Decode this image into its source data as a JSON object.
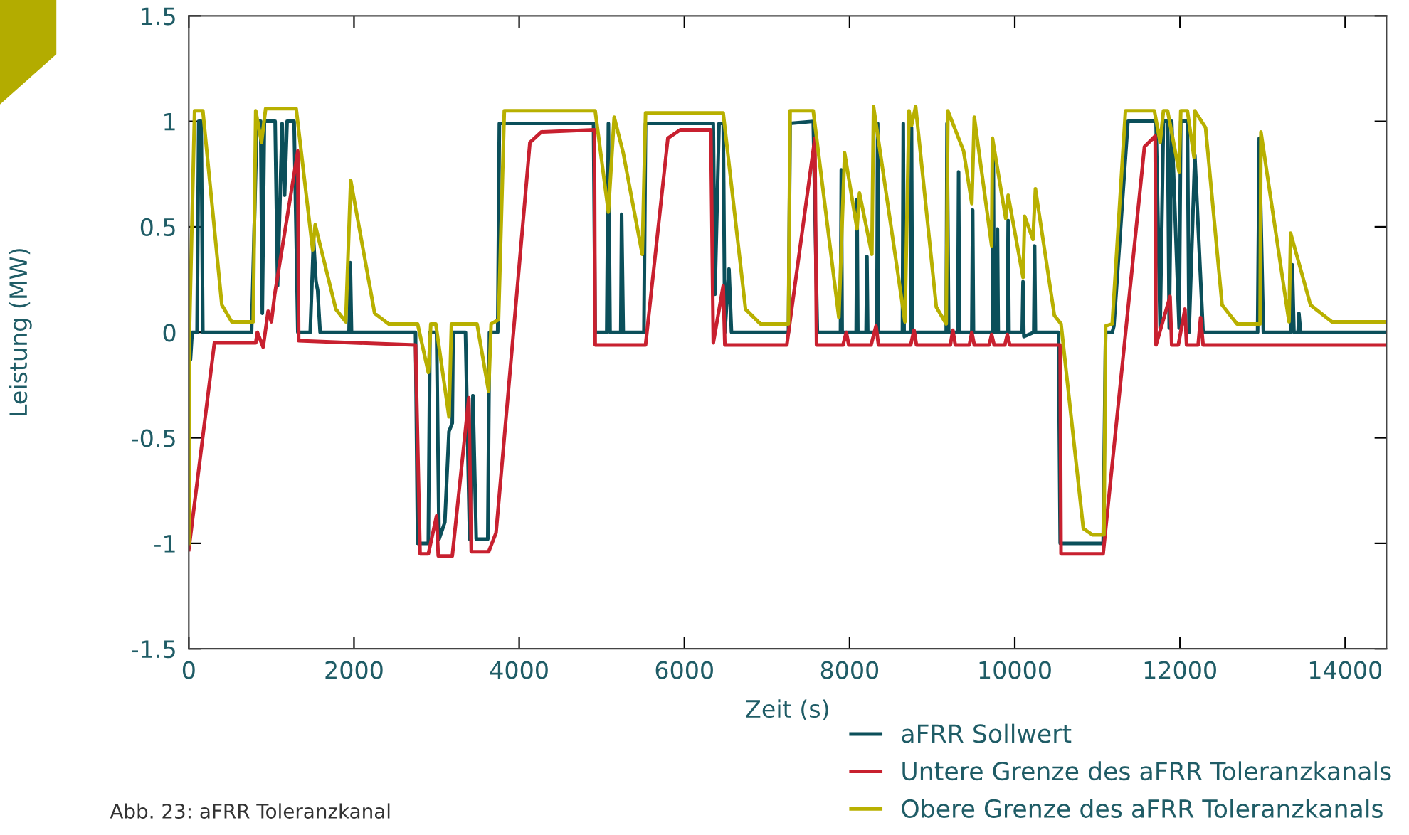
{
  "chart_data": {
    "type": "line",
    "xlabel": "Zeit (s)",
    "ylabel": "Leistung (MW)",
    "xlim": [
      0,
      14500
    ],
    "xticks": [
      0,
      2000,
      4000,
      6000,
      8000,
      10000,
      12000,
      14000
    ],
    "ylim": [
      -1.5,
      1.5
    ],
    "yticks": [
      {
        "value": -1.5,
        "label": "-1.5"
      },
      {
        "value": -1,
        "label": "-1"
      },
      {
        "value": -0.5,
        "label": "-0.5"
      },
      0,
      0.5,
      1,
      1.5
    ],
    "grid": false,
    "legend": "bottom right",
    "line_style": "solid",
    "marker": "none",
    "annotations": [
      "Abb. 23: aFRR Toleranzkanal"
    ],
    "series": [
      {
        "name": "aFRR Sollwert",
        "color": "#0b4f5a",
        "x": [
          0,
          20,
          40,
          100,
          120,
          150,
          170,
          760,
          825,
          870,
          890,
          915,
          1045,
          1075,
          1130,
          1160,
          1190,
          1275,
          1320,
          1470,
          1510,
          1540,
          1560,
          1590,
          1940,
          1955,
          1970,
          2745,
          2770,
          2900,
          2920,
          3000,
          3030,
          3100,
          3150,
          3190,
          3200,
          3350,
          3400,
          3440,
          3480,
          3620,
          3640,
          3740,
          3760,
          4900,
          4920,
          5060,
          5080,
          5100,
          5230,
          5240,
          5260,
          5510,
          5530,
          6350,
          6370,
          6420,
          6470,
          6490,
          6540,
          6570,
          7260,
          7280,
          7560,
          7610,
          7890,
          7900,
          7910,
          8080,
          8090,
          8100,
          8200,
          8210,
          8220,
          8330,
          8340,
          8350,
          8640,
          8650,
          8660,
          8740,
          8750,
          8760,
          9170,
          9180,
          9200,
          9310,
          9320,
          9330,
          9480,
          9490,
          9500,
          9730,
          9740,
          9750,
          9780,
          9790,
          9800,
          9910,
          9920,
          9930,
          10090,
          10100,
          10110,
          10230,
          10240,
          10250,
          10530,
          10550,
          11070,
          11100,
          11180,
          11200,
          11370,
          11710,
          11760,
          11800,
          11850,
          11870,
          11900,
          11990,
          12010,
          12090,
          12110,
          12180,
          12280,
          12940,
          12960,
          13010,
          13340,
          13360,
          13380,
          13430,
          13440,
          13460,
          14500
        ],
        "values": [
          0,
          -0.13,
          0,
          0,
          1,
          1,
          0,
          0,
          1,
          1,
          0.09,
          1,
          1,
          0.22,
          0.99,
          0.65,
          1,
          1,
          0,
          0,
          0.44,
          0.24,
          0.2,
          0,
          0,
          0.33,
          0,
          0,
          -1,
          -1,
          0,
          0,
          -0.98,
          -0.9,
          -0.47,
          -0.43,
          0,
          0,
          -0.98,
          -0.3,
          -0.98,
          -0.98,
          0,
          0,
          0.99,
          0.99,
          0,
          0,
          0.99,
          0,
          0,
          0.56,
          0,
          0,
          0.99,
          0.99,
          0.18,
          0.99,
          0.99,
          0,
          0.3,
          0,
          0,
          0.99,
          1,
          0,
          0,
          0.77,
          0,
          0,
          0.63,
          0,
          0,
          0.36,
          0,
          0,
          0.99,
          0,
          0,
          0.99,
          0,
          0,
          0.97,
          0,
          0,
          0.99,
          0,
          0,
          0.76,
          0,
          0,
          0.58,
          0,
          0,
          0.83,
          0,
          0,
          0.49,
          0,
          0,
          0.53,
          0,
          0,
          0.24,
          -0.02,
          0,
          0.41,
          0,
          0,
          -1,
          -1,
          0,
          0,
          0.03,
          1,
          1,
          0.02,
          1,
          1,
          0.02,
          1,
          0.02,
          1,
          1,
          0,
          0.84,
          0,
          0,
          0.92,
          0,
          0,
          0.32,
          0,
          0,
          0.09,
          0,
          0
        ]
      },
      {
        "name": "Untere Grenze des aFRR Toleranzkanals",
        "color": "#c8202f",
        "x": [
          0,
          310,
          810,
          830,
          900,
          960,
          1000,
          1040,
          1320,
          1330,
          2745,
          2800,
          2900,
          3000,
          3020,
          3190,
          3390,
          3420,
          3630,
          3720,
          4130,
          4270,
          4910,
          4920,
          5530,
          5800,
          5950,
          6320,
          6350,
          6470,
          6490,
          7240,
          7580,
          7600,
          7920,
          7960,
          7990,
          8260,
          8320,
          8350,
          8740,
          8780,
          8810,
          9220,
          9250,
          9280,
          9450,
          9480,
          9510,
          9690,
          9720,
          9750,
          9880,
          9910,
          9940,
          10550,
          10560,
          11070,
          11570,
          11700,
          11710,
          11880,
          11900,
          11980,
          12060,
          12080,
          12220,
          12250,
          12280,
          14500
        ],
        "values": [
          -1.03,
          -0.05,
          -0.05,
          0,
          -0.07,
          0.1,
          0.05,
          0.18,
          0.86,
          -0.04,
          -0.06,
          -1.05,
          -1.05,
          -0.87,
          -1.06,
          -1.06,
          -0.31,
          -1.04,
          -1.04,
          -0.95,
          0.9,
          0.95,
          0.96,
          -0.06,
          -0.06,
          0.92,
          0.96,
          0.96,
          -0.05,
          0.22,
          -0.06,
          -0.06,
          0.92,
          -0.06,
          -0.06,
          0,
          -0.06,
          -0.06,
          0.03,
          -0.06,
          -0.06,
          0.01,
          -0.06,
          -0.06,
          0.01,
          -0.06,
          -0.06,
          0,
          -0.06,
          -0.06,
          -0.01,
          -0.06,
          -0.06,
          -0.01,
          -0.06,
          -0.06,
          -1.05,
          -1.05,
          0.88,
          0.93,
          -0.06,
          0.17,
          -0.06,
          -0.06,
          0.11,
          -0.06,
          -0.06,
          0.07,
          -0.06,
          -0.06
        ]
      },
      {
        "name": "Obere Grenze des aFRR Toleranzkanals",
        "color": "#b8b000",
        "x": [
          0,
          10,
          70,
          170,
          400,
          520,
          780,
          810,
          880,
          930,
          1300,
          1500,
          1530,
          1780,
          1900,
          1960,
          2250,
          2420,
          2770,
          2900,
          2930,
          2990,
          3150,
          3180,
          3490,
          3630,
          3660,
          3750,
          3820,
          4920,
          5080,
          5150,
          5260,
          5490,
          5530,
          6470,
          6740,
          6920,
          7260,
          7280,
          7560,
          7870,
          7940,
          8090,
          8120,
          8270,
          8290,
          8670,
          8720,
          8750,
          8800,
          9050,
          9170,
          9190,
          9380,
          9480,
          9510,
          9720,
          9730,
          9890,
          9920,
          10100,
          10120,
          10220,
          10250,
          10480,
          10560,
          10830,
          10940,
          11080,
          11100,
          11180,
          11340,
          11690,
          11760,
          11800,
          11850,
          11990,
          12010,
          12090,
          12170,
          12180,
          12310,
          12510,
          12690,
          12970,
          12980,
          13320,
          13340,
          13580,
          13840,
          14500
        ],
        "values": [
          -1.0,
          0.04,
          1.05,
          1.05,
          0.13,
          0.05,
          0.05,
          1.05,
          0.9,
          1.06,
          1.06,
          0.39,
          0.51,
          0.11,
          0.05,
          0.72,
          0.09,
          0.04,
          0.04,
          -0.19,
          0.04,
          0.04,
          -0.4,
          0.04,
          0.04,
          -0.28,
          0.04,
          0.06,
          1.05,
          1.05,
          0.57,
          1.02,
          0.85,
          0.37,
          1.04,
          1.04,
          0.11,
          0.04,
          0.04,
          1.05,
          1.05,
          0.07,
          0.85,
          0.49,
          0.66,
          0.37,
          1.07,
          0.05,
          1.05,
          0.98,
          1.07,
          0.12,
          0.04,
          1.05,
          0.86,
          0.61,
          1.02,
          0.41,
          0.92,
          0.54,
          0.65,
          0.26,
          0.55,
          0.44,
          0.68,
          0.08,
          0.04,
          -0.93,
          -0.96,
          -0.96,
          0.03,
          0.04,
          1.05,
          1.05,
          0.9,
          1.05,
          1.05,
          0.76,
          1.05,
          1.05,
          0.83,
          1.05,
          0.97,
          0.13,
          0.04,
          0.04,
          0.95,
          0.05,
          0.47,
          0.13,
          0.05,
          0.05
        ]
      }
    ]
  }
}
